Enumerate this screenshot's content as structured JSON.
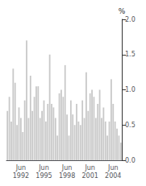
{
  "chart_data": {
    "type": "bar",
    "ylabel": "%",
    "categories": [
      null,
      null,
      null,
      null,
      null,
      null,
      null,
      "Jun\n1992",
      null,
      null,
      null,
      null,
      null,
      null,
      null,
      null,
      null,
      null,
      null,
      "Jun\n1995",
      null,
      null,
      null,
      null,
      null,
      null,
      null,
      null,
      null,
      null,
      null,
      "Jun\n1998",
      null,
      null,
      null,
      null,
      null,
      null,
      null,
      null,
      null,
      null,
      null,
      "Jun\n2001",
      null,
      null,
      null,
      null,
      null,
      null,
      null,
      null,
      null,
      null,
      null,
      "Jun\n2004",
      null,
      null,
      null,
      null
    ],
    "values": [
      0.7,
      0.9,
      0.55,
      1.3,
      1.1,
      0.5,
      0.75,
      0.6,
      0.4,
      0.85,
      1.7,
      0.6,
      1.2,
      0.7,
      0.9,
      1.05,
      1.05,
      0.6,
      0.7,
      0.85,
      0.55,
      0.8,
      1.5,
      0.8,
      0.75,
      0.6,
      0.35,
      0.95,
      1.0,
      0.9,
      1.35,
      0.65,
      0.35,
      0.85,
      0.65,
      0.5,
      0.8,
      0.55,
      0.5,
      0.85,
      0.6,
      1.25,
      0.7,
      0.95,
      1.0,
      0.9,
      0.6,
      0.8,
      1.0,
      0.6,
      0.75,
      0.55,
      0.35,
      0.55,
      1.15,
      0.8,
      0.55,
      0.45,
      0.35,
      0.25
    ],
    "color": "#c8c8c8",
    "ylim": [
      0.0,
      2.0
    ],
    "yticks": [
      {
        "value": 0.0,
        "label": "0.0"
      },
      0.5,
      {
        "value": 1.0,
        "label": "1.0"
      },
      1.5,
      {
        "value": 2.0,
        "label": "2.0"
      }
    ],
    "grid": false
  }
}
